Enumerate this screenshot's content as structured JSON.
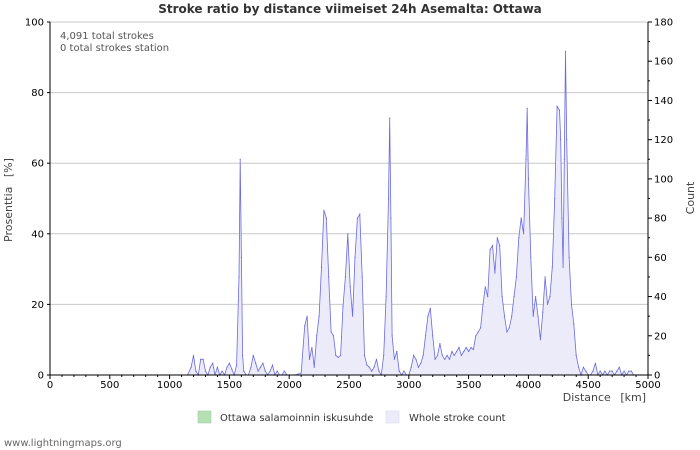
{
  "chart_data": {
    "type": "area",
    "title": "Stroke ratio by distance viimeiset 24h Asemalta: Ottawa",
    "xlabel": "Distance",
    "xunit": "[km]",
    "ylabel_left": "Prosenttia",
    "ylabel_left_unit": "[%]",
    "ylabel_right": "Count",
    "xlim": [
      0,
      5000
    ],
    "ylim_left": [
      0,
      100
    ],
    "ylim_right": [
      0,
      180
    ],
    "x_ticks": [
      "0",
      "500",
      "1000",
      "1500",
      "2000",
      "2500",
      "3000",
      "3500",
      "4000",
      "4500",
      "5000"
    ],
    "y_left_ticks": [
      "0",
      "20",
      "40",
      "60",
      "80",
      "100"
    ],
    "y_right_ticks": [
      "0",
      "20",
      "40",
      "60",
      "80",
      "100",
      "120",
      "140",
      "160",
      "180"
    ],
    "grid": true,
    "stats": [
      "4,091 total strokes",
      "0 total strokes station"
    ],
    "legend": [
      {
        "label": "Ottawa salamoinnin iskusuhde",
        "color": "#b4e0b4"
      },
      {
        "label": "Whole stroke count",
        "color": "#ecebfa"
      }
    ],
    "series": [
      {
        "name": "Whole stroke count",
        "axis": "right",
        "line_color": "#6a6ae0",
        "fill_color": "#ecebfa",
        "points": [
          [
            1150,
            0
          ],
          [
            1180,
            4
          ],
          [
            1200,
            10
          ],
          [
            1220,
            2
          ],
          [
            1240,
            0
          ],
          [
            1260,
            8
          ],
          [
            1280,
            8
          ],
          [
            1300,
            2
          ],
          [
            1320,
            0
          ],
          [
            1340,
            4
          ],
          [
            1360,
            6
          ],
          [
            1380,
            0
          ],
          [
            1400,
            4
          ],
          [
            1420,
            0
          ],
          [
            1440,
            2
          ],
          [
            1460,
            0
          ],
          [
            1480,
            4
          ],
          [
            1500,
            6
          ],
          [
            1520,
            3
          ],
          [
            1540,
            0
          ],
          [
            1560,
            5
          ],
          [
            1580,
            50
          ],
          [
            1590,
            110
          ],
          [
            1600,
            60
          ],
          [
            1610,
            10
          ],
          [
            1620,
            2
          ],
          [
            1640,
            0
          ],
          [
            1660,
            0
          ],
          [
            1680,
            4
          ],
          [
            1700,
            10
          ],
          [
            1720,
            6
          ],
          [
            1740,
            2
          ],
          [
            1760,
            4
          ],
          [
            1780,
            6
          ],
          [
            1800,
            2
          ],
          [
            1820,
            0
          ],
          [
            1840,
            2
          ],
          [
            1860,
            5
          ],
          [
            1880,
            0
          ],
          [
            1900,
            2
          ],
          [
            1920,
            0
          ],
          [
            1940,
            0
          ],
          [
            1960,
            2
          ],
          [
            1980,
            0
          ],
          [
            2000,
            0
          ],
          [
            2050,
            0
          ],
          [
            2100,
            1
          ],
          [
            2130,
            25
          ],
          [
            2150,
            30
          ],
          [
            2170,
            8
          ],
          [
            2190,
            14
          ],
          [
            2210,
            4
          ],
          [
            2230,
            20
          ],
          [
            2250,
            30
          ],
          [
            2270,
            55
          ],
          [
            2290,
            84
          ],
          [
            2310,
            80
          ],
          [
            2330,
            50
          ],
          [
            2350,
            22
          ],
          [
            2370,
            20
          ],
          [
            2390,
            10
          ],
          [
            2410,
            9
          ],
          [
            2430,
            10
          ],
          [
            2450,
            35
          ],
          [
            2470,
            50
          ],
          [
            2490,
            72
          ],
          [
            2510,
            45
          ],
          [
            2530,
            30
          ],
          [
            2550,
            60
          ],
          [
            2570,
            80
          ],
          [
            2590,
            82
          ],
          [
            2610,
            50
          ],
          [
            2630,
            10
          ],
          [
            2650,
            5
          ],
          [
            2670,
            4
          ],
          [
            2690,
            2
          ],
          [
            2710,
            4
          ],
          [
            2730,
            8
          ],
          [
            2750,
            2
          ],
          [
            2770,
            0
          ],
          [
            2790,
            10
          ],
          [
            2810,
            40
          ],
          [
            2830,
            90
          ],
          [
            2840,
            131
          ],
          [
            2850,
            80
          ],
          [
            2860,
            20
          ],
          [
            2880,
            8
          ],
          [
            2900,
            12
          ],
          [
            2920,
            2
          ],
          [
            2940,
            0
          ],
          [
            2960,
            2
          ],
          [
            2980,
            0
          ],
          [
            3000,
            0
          ],
          [
            3020,
            4
          ],
          [
            3040,
            10
          ],
          [
            3060,
            8
          ],
          [
            3080,
            4
          ],
          [
            3100,
            6
          ],
          [
            3120,
            10
          ],
          [
            3140,
            20
          ],
          [
            3160,
            30
          ],
          [
            3180,
            34
          ],
          [
            3200,
            20
          ],
          [
            3220,
            8
          ],
          [
            3240,
            10
          ],
          [
            3260,
            16
          ],
          [
            3280,
            10
          ],
          [
            3300,
            8
          ],
          [
            3320,
            10
          ],
          [
            3340,
            8
          ],
          [
            3360,
            12
          ],
          [
            3380,
            10
          ],
          [
            3400,
            12
          ],
          [
            3420,
            14
          ],
          [
            3440,
            10
          ],
          [
            3460,
            12
          ],
          [
            3480,
            14
          ],
          [
            3500,
            12
          ],
          [
            3520,
            14
          ],
          [
            3540,
            13
          ],
          [
            3560,
            20
          ],
          [
            3580,
            22
          ],
          [
            3600,
            24
          ],
          [
            3620,
            36
          ],
          [
            3640,
            45
          ],
          [
            3660,
            40
          ],
          [
            3680,
            64
          ],
          [
            3700,
            66
          ],
          [
            3720,
            52
          ],
          [
            3740,
            70
          ],
          [
            3760,
            66
          ],
          [
            3780,
            40
          ],
          [
            3800,
            30
          ],
          [
            3820,
            22
          ],
          [
            3840,
            24
          ],
          [
            3860,
            30
          ],
          [
            3880,
            40
          ],
          [
            3900,
            50
          ],
          [
            3920,
            70
          ],
          [
            3940,
            80
          ],
          [
            3960,
            72
          ],
          [
            3980,
            110
          ],
          [
            3990,
            136
          ],
          [
            4000,
            100
          ],
          [
            4020,
            60
          ],
          [
            4040,
            30
          ],
          [
            4060,
            40
          ],
          [
            4080,
            30
          ],
          [
            4100,
            18
          ],
          [
            4120,
            32
          ],
          [
            4140,
            50
          ],
          [
            4160,
            36
          ],
          [
            4180,
            40
          ],
          [
            4200,
            55
          ],
          [
            4220,
            90
          ],
          [
            4240,
            137
          ],
          [
            4260,
            135
          ],
          [
            4270,
            120
          ],
          [
            4280,
            80
          ],
          [
            4290,
            55
          ],
          [
            4300,
            110
          ],
          [
            4310,
            165
          ],
          [
            4320,
            120
          ],
          [
            4340,
            60
          ],
          [
            4360,
            36
          ],
          [
            4380,
            26
          ],
          [
            4400,
            10
          ],
          [
            4420,
            4
          ],
          [
            4440,
            0
          ],
          [
            4460,
            4
          ],
          [
            4480,
            2
          ],
          [
            4500,
            0
          ],
          [
            4520,
            0
          ],
          [
            4540,
            2
          ],
          [
            4560,
            6
          ],
          [
            4580,
            0
          ],
          [
            4600,
            2
          ],
          [
            4620,
            0
          ],
          [
            4640,
            2
          ],
          [
            4660,
            0
          ],
          [
            4680,
            2
          ],
          [
            4700,
            2
          ],
          [
            4720,
            0
          ],
          [
            4740,
            2
          ],
          [
            4760,
            4
          ],
          [
            4780,
            0
          ],
          [
            4800,
            2
          ],
          [
            4820,
            0
          ],
          [
            4840,
            2
          ],
          [
            4860,
            2
          ],
          [
            4880,
            0
          ],
          [
            4900,
            0
          ],
          [
            4920,
            0
          ],
          [
            4940,
            0
          ],
          [
            4960,
            0
          ],
          [
            5000,
            0
          ]
        ]
      }
    ]
  },
  "footer": {
    "credit": "www.lightningmaps.org"
  }
}
